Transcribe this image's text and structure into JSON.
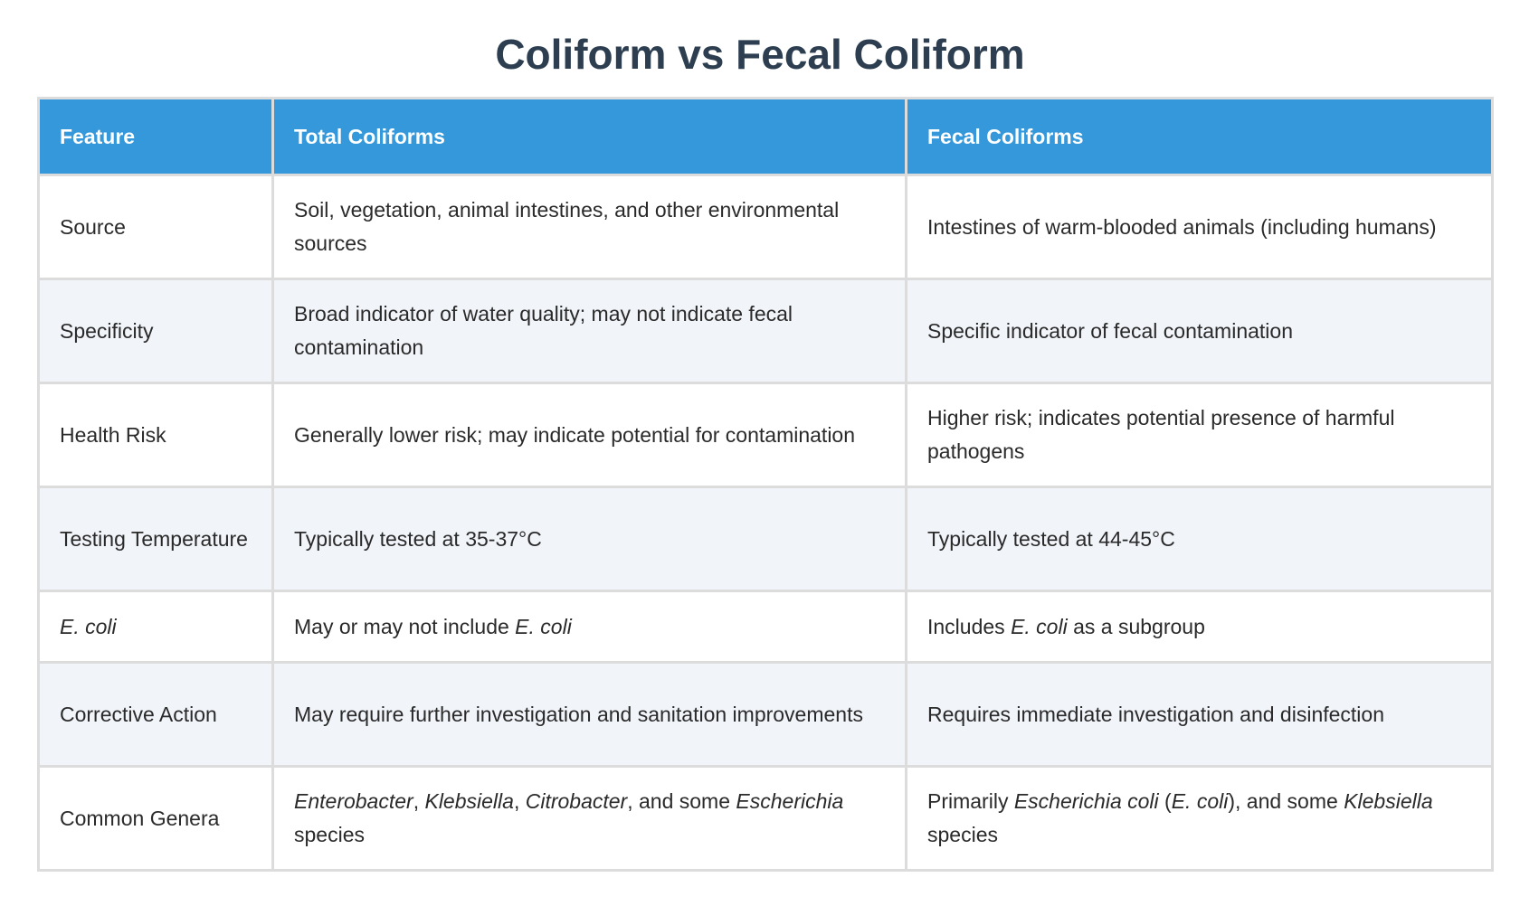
{
  "header": {
    "title": "Coliform vs Fecal Coliform"
  },
  "table": {
    "columns": [
      "Feature",
      "Total Coliforms",
      "Fecal Coliforms"
    ],
    "rows": [
      [
        [
          "Source"
        ],
        [
          "Soil, vegetation, animal intestines, and other environmental sources"
        ],
        [
          "Intestines of warm-blooded animals (including humans)"
        ]
      ],
      [
        [
          "Specificity"
        ],
        [
          "Broad indicator of water quality; may not indicate fecal contamination"
        ],
        [
          "Specific indicator of fecal contamination"
        ]
      ],
      [
        [
          "Health Risk"
        ],
        [
          "Generally lower risk; may indicate potential for contamination"
        ],
        [
          "Higher risk; indicates potential presence of harmful pathogens"
        ]
      ],
      [
        [
          "Testing Temperature"
        ],
        [
          "Typically tested at 35-37°C"
        ],
        [
          "Typically tested at 44-45°C"
        ]
      ],
      [
        [
          {
            "em": "E. coli"
          }
        ],
        [
          "May or may not include ",
          {
            "em": "E. coli"
          }
        ],
        [
          "Includes ",
          {
            "em": "E. coli"
          },
          " as a subgroup"
        ]
      ],
      [
        [
          "Corrective Action"
        ],
        [
          "May require further investigation and sanitation improvements"
        ],
        [
          "Requires immediate investigation and disinfection"
        ]
      ],
      [
        [
          "Common Genera"
        ],
        [
          {
            "em": "Enterobacter"
          },
          ", ",
          {
            "em": "Klebsiella"
          },
          ", ",
          {
            "em": "Citrobacter"
          },
          ", and some ",
          {
            "em": "Escherichia"
          },
          " species"
        ],
        [
          "Primarily ",
          {
            "em": "Escherichia coli"
          },
          " (",
          {
            "em": "E. coli"
          },
          "), and some ",
          {
            "em": "Klebsiella"
          },
          " species"
        ]
      ]
    ]
  }
}
